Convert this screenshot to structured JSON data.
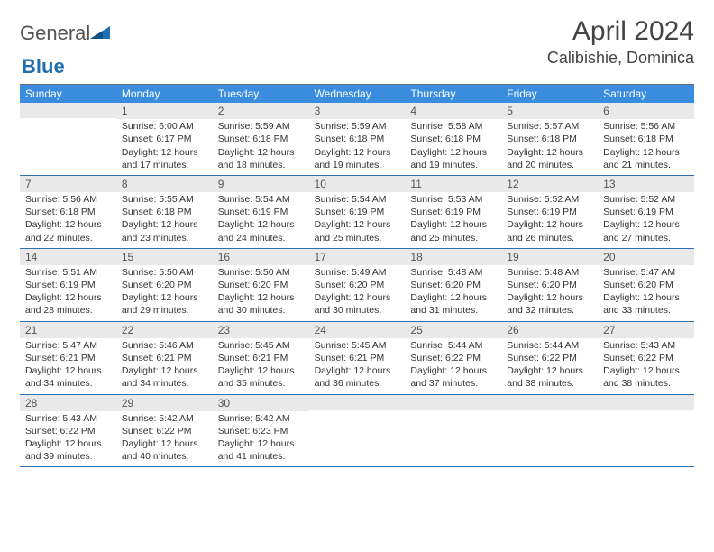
{
  "logo": {
    "word1": "General",
    "word2": "Blue"
  },
  "title": "April 2024",
  "location": "Calibishie, Dominica",
  "colors": {
    "header_bg": "#3a8dde",
    "header_text": "#ffffff",
    "daynum_bg": "#e9e9e9",
    "row_border": "#2a6fb0",
    "body_text": "#333333",
    "logo_gray": "#545454",
    "logo_blue": "#1f6fb2"
  },
  "weekdays": [
    "Sunday",
    "Monday",
    "Tuesday",
    "Wednesday",
    "Thursday",
    "Friday",
    "Saturday"
  ],
  "weeks": [
    [
      {
        "n": "",
        "lines": []
      },
      {
        "n": "1",
        "lines": [
          "Sunrise: 6:00 AM",
          "Sunset: 6:17 PM",
          "Daylight: 12 hours and 17 minutes."
        ]
      },
      {
        "n": "2",
        "lines": [
          "Sunrise: 5:59 AM",
          "Sunset: 6:18 PM",
          "Daylight: 12 hours and 18 minutes."
        ]
      },
      {
        "n": "3",
        "lines": [
          "Sunrise: 5:59 AM",
          "Sunset: 6:18 PM",
          "Daylight: 12 hours and 19 minutes."
        ]
      },
      {
        "n": "4",
        "lines": [
          "Sunrise: 5:58 AM",
          "Sunset: 6:18 PM",
          "Daylight: 12 hours and 19 minutes."
        ]
      },
      {
        "n": "5",
        "lines": [
          "Sunrise: 5:57 AM",
          "Sunset: 6:18 PM",
          "Daylight: 12 hours and 20 minutes."
        ]
      },
      {
        "n": "6",
        "lines": [
          "Sunrise: 5:56 AM",
          "Sunset: 6:18 PM",
          "Daylight: 12 hours and 21 minutes."
        ]
      }
    ],
    [
      {
        "n": "7",
        "lines": [
          "Sunrise: 5:56 AM",
          "Sunset: 6:18 PM",
          "Daylight: 12 hours and 22 minutes."
        ]
      },
      {
        "n": "8",
        "lines": [
          "Sunrise: 5:55 AM",
          "Sunset: 6:18 PM",
          "Daylight: 12 hours and 23 minutes."
        ]
      },
      {
        "n": "9",
        "lines": [
          "Sunrise: 5:54 AM",
          "Sunset: 6:19 PM",
          "Daylight: 12 hours and 24 minutes."
        ]
      },
      {
        "n": "10",
        "lines": [
          "Sunrise: 5:54 AM",
          "Sunset: 6:19 PM",
          "Daylight: 12 hours and 25 minutes."
        ]
      },
      {
        "n": "11",
        "lines": [
          "Sunrise: 5:53 AM",
          "Sunset: 6:19 PM",
          "Daylight: 12 hours and 25 minutes."
        ]
      },
      {
        "n": "12",
        "lines": [
          "Sunrise: 5:52 AM",
          "Sunset: 6:19 PM",
          "Daylight: 12 hours and 26 minutes."
        ]
      },
      {
        "n": "13",
        "lines": [
          "Sunrise: 5:52 AM",
          "Sunset: 6:19 PM",
          "Daylight: 12 hours and 27 minutes."
        ]
      }
    ],
    [
      {
        "n": "14",
        "lines": [
          "Sunrise: 5:51 AM",
          "Sunset: 6:19 PM",
          "Daylight: 12 hours and 28 minutes."
        ]
      },
      {
        "n": "15",
        "lines": [
          "Sunrise: 5:50 AM",
          "Sunset: 6:20 PM",
          "Daylight: 12 hours and 29 minutes."
        ]
      },
      {
        "n": "16",
        "lines": [
          "Sunrise: 5:50 AM",
          "Sunset: 6:20 PM",
          "Daylight: 12 hours and 30 minutes."
        ]
      },
      {
        "n": "17",
        "lines": [
          "Sunrise: 5:49 AM",
          "Sunset: 6:20 PM",
          "Daylight: 12 hours and 30 minutes."
        ]
      },
      {
        "n": "18",
        "lines": [
          "Sunrise: 5:48 AM",
          "Sunset: 6:20 PM",
          "Daylight: 12 hours and 31 minutes."
        ]
      },
      {
        "n": "19",
        "lines": [
          "Sunrise: 5:48 AM",
          "Sunset: 6:20 PM",
          "Daylight: 12 hours and 32 minutes."
        ]
      },
      {
        "n": "20",
        "lines": [
          "Sunrise: 5:47 AM",
          "Sunset: 6:20 PM",
          "Daylight: 12 hours and 33 minutes."
        ]
      }
    ],
    [
      {
        "n": "21",
        "lines": [
          "Sunrise: 5:47 AM",
          "Sunset: 6:21 PM",
          "Daylight: 12 hours and 34 minutes."
        ]
      },
      {
        "n": "22",
        "lines": [
          "Sunrise: 5:46 AM",
          "Sunset: 6:21 PM",
          "Daylight: 12 hours and 34 minutes."
        ]
      },
      {
        "n": "23",
        "lines": [
          "Sunrise: 5:45 AM",
          "Sunset: 6:21 PM",
          "Daylight: 12 hours and 35 minutes."
        ]
      },
      {
        "n": "24",
        "lines": [
          "Sunrise: 5:45 AM",
          "Sunset: 6:21 PM",
          "Daylight: 12 hours and 36 minutes."
        ]
      },
      {
        "n": "25",
        "lines": [
          "Sunrise: 5:44 AM",
          "Sunset: 6:22 PM",
          "Daylight: 12 hours and 37 minutes."
        ]
      },
      {
        "n": "26",
        "lines": [
          "Sunrise: 5:44 AM",
          "Sunset: 6:22 PM",
          "Daylight: 12 hours and 38 minutes."
        ]
      },
      {
        "n": "27",
        "lines": [
          "Sunrise: 5:43 AM",
          "Sunset: 6:22 PM",
          "Daylight: 12 hours and 38 minutes."
        ]
      }
    ],
    [
      {
        "n": "28",
        "lines": [
          "Sunrise: 5:43 AM",
          "Sunset: 6:22 PM",
          "Daylight: 12 hours and 39 minutes."
        ]
      },
      {
        "n": "29",
        "lines": [
          "Sunrise: 5:42 AM",
          "Sunset: 6:22 PM",
          "Daylight: 12 hours and 40 minutes."
        ]
      },
      {
        "n": "30",
        "lines": [
          "Sunrise: 5:42 AM",
          "Sunset: 6:23 PM",
          "Daylight: 12 hours and 41 minutes."
        ]
      },
      {
        "n": "",
        "lines": []
      },
      {
        "n": "",
        "lines": []
      },
      {
        "n": "",
        "lines": []
      },
      {
        "n": "",
        "lines": []
      }
    ]
  ]
}
